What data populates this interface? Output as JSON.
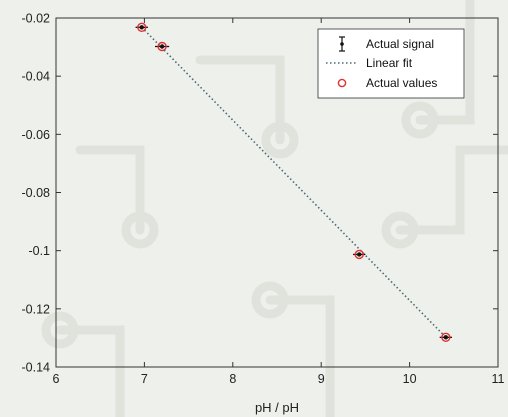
{
  "chart_data": {
    "type": "scatter",
    "title": "",
    "xlabel": "pH / pH",
    "ylabel": "",
    "xlim": [
      6,
      11
    ],
    "ylim": [
      -0.14,
      -0.02
    ],
    "xticks": [
      6,
      7,
      8,
      9,
      10,
      11
    ],
    "xtick_labels": [
      "6",
      "7",
      "8",
      "9",
      "10",
      "11"
    ],
    "yticks": [
      -0.14,
      -0.12,
      -0.1,
      -0.08,
      -0.06,
      -0.04,
      -0.02
    ],
    "ytick_labels": [
      "-0.14",
      "-0.12",
      "-0.1",
      "-0.08",
      "-0.06",
      "-0.04",
      "-0.02"
    ],
    "grid": false,
    "legend_position": "top-right",
    "series": [
      {
        "name": "Actual signal",
        "kind": "errorbar",
        "color": "#111111",
        "x": [
          6.97,
          7.2,
          9.43,
          10.41
        ],
        "y": [
          -0.0232,
          -0.0298,
          -0.1013,
          -0.1298
        ],
        "x_err": [
          0.07,
          0.08,
          0.07,
          0.07
        ]
      },
      {
        "name": "Linear fit",
        "kind": "line",
        "style": "dotted",
        "color": "#4a6a70",
        "x": [
          6.97,
          10.41
        ],
        "y": [
          -0.0232,
          -0.1298
        ]
      },
      {
        "name": "Actual values",
        "kind": "marker",
        "marker": "circle-open",
        "color": "#e03030",
        "x": [
          6.97,
          7.2,
          9.43,
          10.41
        ],
        "y": [
          -0.0232,
          -0.0298,
          -0.1013,
          -0.1298
        ]
      }
    ]
  }
}
